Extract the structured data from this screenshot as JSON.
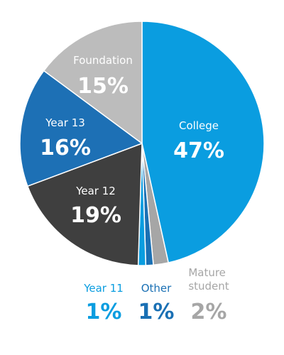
{
  "chart_data": {
    "type": "pie",
    "slices": [
      {
        "label": "College",
        "value": 47,
        "value_label": "47%",
        "color": "#0a9de0",
        "label_color": "#ffffff"
      },
      {
        "label": "Mature student",
        "value": 2,
        "value_label": "2%",
        "color": "#a6a6a6",
        "label_color": "#a6a6a6"
      },
      {
        "label": "Other",
        "value": 1,
        "value_label": "1%",
        "color": "#1a70b4",
        "label_color": "#1a70b4"
      },
      {
        "label": "Year 11",
        "value": 1,
        "value_label": "1%",
        "color": "#0a9de0",
        "label_color": "#0a9de0"
      },
      {
        "label": "Year 12",
        "value": 19,
        "value_label": "19%",
        "color": "#3f3f3f",
        "label_color": "#ffffff"
      },
      {
        "label": "Year 13",
        "value": 16,
        "value_label": "16%",
        "color": "#1d70b5",
        "label_color": "#ffffff"
      },
      {
        "label": "Foundation",
        "value": 15,
        "value_label": "15%",
        "color": "#bcbcbc",
        "label_color": "#ffffff"
      }
    ]
  }
}
